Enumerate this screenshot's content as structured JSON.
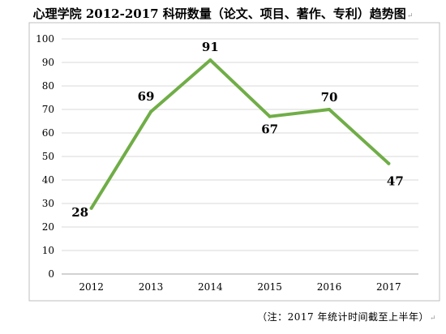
{
  "title": "心理学院 2012-2017 科研数量（论文、项目、著作、专利）趋势图",
  "paragraph_mark": "↵",
  "footnote": "（注：2017 年统计时间截至上半年）",
  "chart_data": {
    "type": "line",
    "categories": [
      "2012",
      "2013",
      "2014",
      "2015",
      "2016",
      "2017"
    ],
    "values": [
      28,
      69,
      91,
      67,
      70,
      47
    ],
    "data_labels": [
      "28",
      "69",
      "91",
      "67",
      "70",
      "47"
    ],
    "ylim": [
      0,
      100
    ],
    "yticks": [
      "0",
      "10",
      "20",
      "30",
      "40",
      "50",
      "60",
      "70",
      "80",
      "90",
      "100"
    ],
    "grid": true,
    "legend": "none",
    "line_color": "#70AD47",
    "grid_color": "#D9D9D9",
    "frame_color": "#BFBFBF"
  }
}
